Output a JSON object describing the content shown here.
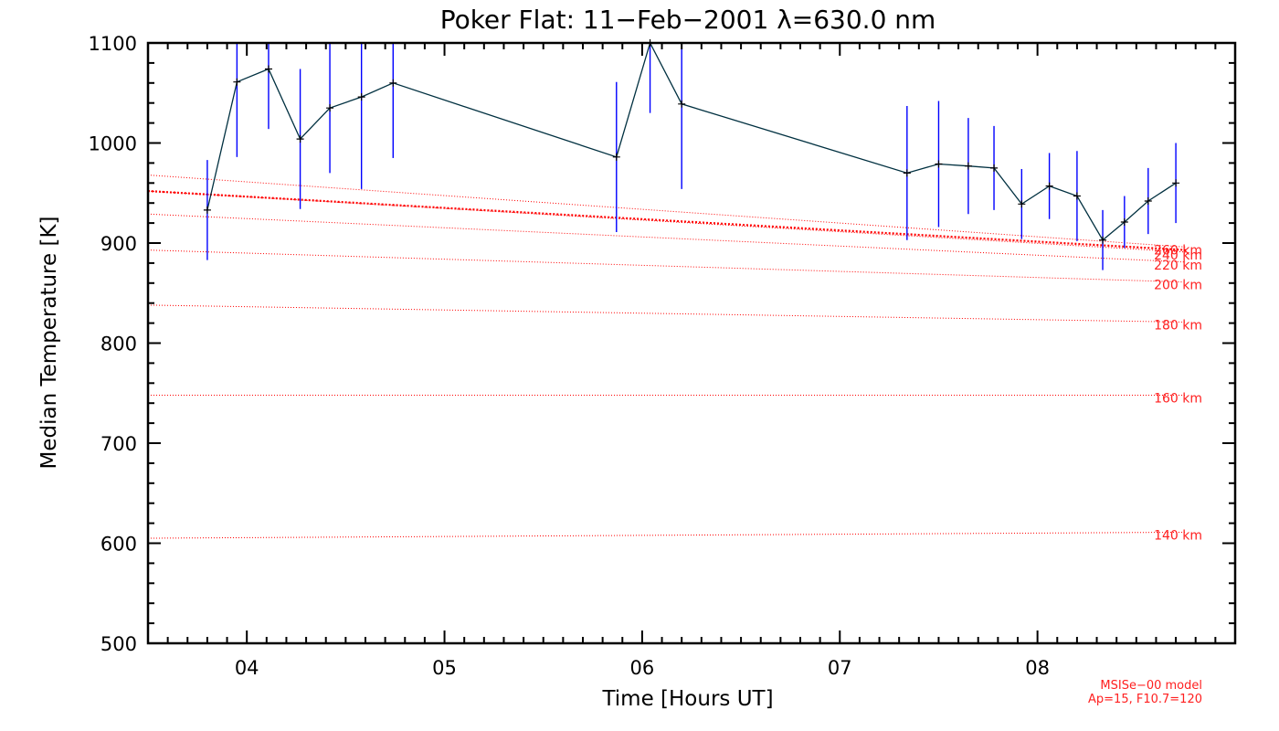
{
  "chart_data": {
    "type": "line",
    "title": "Poker Flat: 11−Feb−2001 λ=630.0 nm",
    "xlabel": "Time [Hours UT]",
    "ylabel": "Median Temperature [K]",
    "xlim": [
      3.5,
      9.0
    ],
    "ylim": [
      500,
      1100
    ],
    "x_ticks": [
      4,
      5,
      6,
      7,
      8
    ],
    "x_tick_labels": [
      "04",
      "05",
      "06",
      "07",
      "08"
    ],
    "y_ticks": [
      500,
      600,
      700,
      800,
      900,
      1000,
      1100
    ],
    "y_tick_labels": [
      "500",
      "600",
      "700",
      "800",
      "900",
      "1000",
      "1100"
    ],
    "grid": false,
    "series": [
      {
        "x": [
          3.8,
          3.95,
          4.11,
          4.27,
          4.42,
          4.58,
          4.74,
          5.87,
          6.04,
          6.2,
          7.34,
          7.5,
          7.65,
          7.78,
          7.92,
          8.06,
          8.2,
          8.33,
          8.44,
          8.56,
          8.7
        ],
        "y": [
          933,
          1061,
          1074,
          1004,
          1035,
          1046,
          1060,
          986,
          1110,
          1039,
          970,
          979,
          977,
          975,
          939,
          957,
          947,
          903,
          921,
          942,
          960
        ],
        "err": [
          50,
          75,
          60,
          70,
          65,
          92,
          75,
          75,
          80,
          85,
          67,
          63,
          48,
          42,
          35,
          33,
          45,
          30,
          26,
          33,
          40
        ],
        "line_color": "#003040",
        "error_color": "#0000ff"
      }
    ],
    "model_curves": [
      {
        "label": "140 km",
        "x": [
          3.5,
          8.75
        ],
        "y": [
          605,
          611
        ]
      },
      {
        "label": "160 km",
        "x": [
          3.5,
          8.75
        ],
        "y": [
          748,
          748
        ]
      },
      {
        "label": "180 km",
        "x": [
          3.5,
          8.75
        ],
        "y": [
          838,
          821
        ]
      },
      {
        "label": "200 km",
        "x": [
          3.5,
          8.75
        ],
        "y": [
          893,
          861
        ]
      },
      {
        "label": "220 km",
        "x": [
          3.5,
          8.75
        ],
        "y": [
          929,
          881
        ]
      },
      {
        "label": "240 km",
        "x": [
          3.5,
          8.75
        ],
        "y": [
          952,
          891
        ]
      },
      {
        "label": "260 km",
        "x": [
          3.5,
          8.75
        ],
        "y": [
          968,
          896
        ]
      }
    ],
    "highlight_curve": {
      "x": [
        3.5,
        8.75
      ],
      "y": [
        952,
        893
      ]
    },
    "model_note": [
      "MSISe−00 model",
      "Ap=15, F10.7=120"
    ],
    "colors": {
      "model": "#ff0000",
      "data_line": "#003040",
      "error_bars": "#0000ff",
      "axes": "#000000"
    }
  }
}
